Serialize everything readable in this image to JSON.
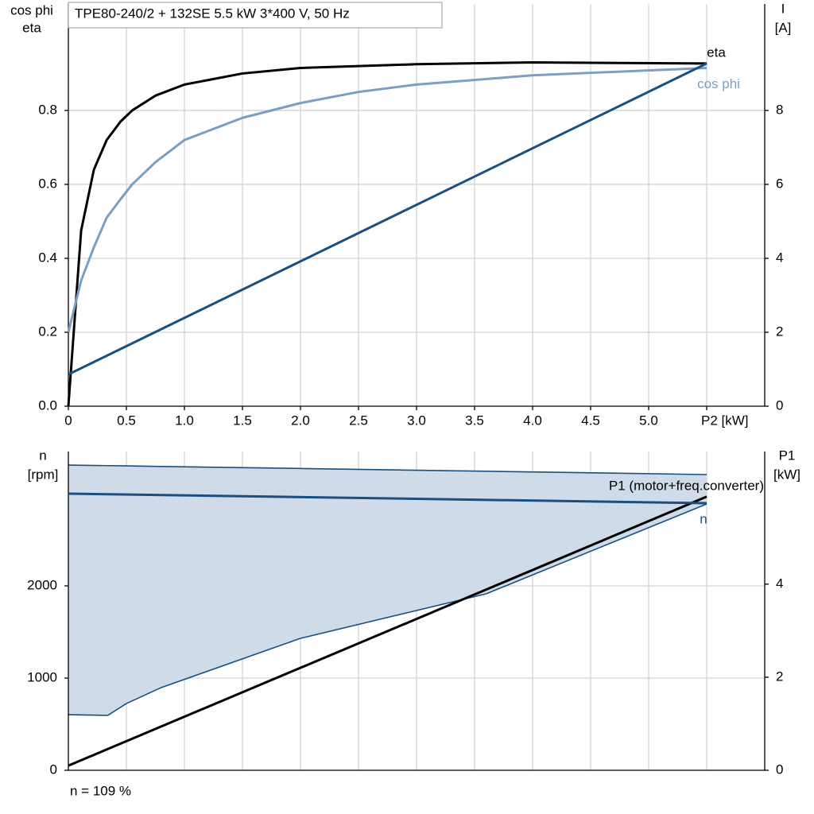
{
  "chart_data": [
    {
      "type": "line",
      "title": "TPE80-240/2 + 132SE   5.5 kW   3*400 V, 50 Hz",
      "ylabel": [
        "cos phi",
        "eta"
      ],
      "y2label": [
        "I",
        "[A]"
      ],
      "xlim": [
        0,
        6
      ],
      "xticks": [
        0,
        0.5,
        {
          "value": 1,
          "label": "1.0"
        },
        1.5,
        {
          "value": 2,
          "label": "2.0"
        },
        2.5,
        {
          "value": 3,
          "label": "3.0"
        },
        3.5,
        {
          "value": 4,
          "label": "4.0"
        },
        4.5,
        {
          "value": 5,
          "label": "5.0"
        },
        {
          "value": 5.5,
          "label": "P2 [kW]"
        }
      ],
      "ylim": [
        0,
        1.088
      ],
      "yticks": [
        {
          "value": 0,
          "label": "0.0"
        },
        0.2,
        0.4,
        0.6,
        0.8
      ],
      "y2lim": [
        0,
        10.88
      ],
      "y2ticks": [
        0,
        2,
        4,
        6,
        8
      ],
      "grid": true,
      "series": [
        {
          "name": "eta",
          "color": "#000000",
          "x": [
            0,
            0.11,
            0.22,
            0.33,
            0.45,
            0.55,
            0.75,
            1.0,
            1.5,
            2.0,
            3.0,
            4.0,
            5.5
          ],
          "values": [
            0,
            0.475,
            0.64,
            0.72,
            0.77,
            0.8,
            0.84,
            0.87,
            0.9,
            0.915,
            0.925,
            0.93,
            0.927
          ]
        },
        {
          "name": "cos phi",
          "color": "#7b9fc2",
          "x": [
            0,
            0.11,
            0.22,
            0.33,
            0.45,
            0.55,
            0.75,
            1.0,
            1.5,
            2.0,
            2.5,
            3.0,
            4.0,
            5.5
          ],
          "values": [
            0.2,
            0.34,
            0.43,
            0.51,
            0.56,
            0.6,
            0.66,
            0.72,
            0.78,
            0.82,
            0.85,
            0.87,
            0.895,
            0.915
          ]
        },
        {
          "color": "#1a4f80",
          "axis": "y2",
          "x": [
            0,
            5.5
          ],
          "values": [
            0.86,
            9.27
          ]
        }
      ]
    },
    {
      "type": "line",
      "ylabel": [
        "n",
        "[rpm]"
      ],
      "y2label": [
        "P1",
        "[kW]"
      ],
      "xlim": [
        0,
        6
      ],
      "xgrid": [
        0.5,
        1,
        1.5,
        2,
        2.5,
        3,
        3.5,
        4,
        4.5,
        5,
        5.5
      ],
      "ylim": [
        0,
        3457
      ],
      "yticks": [
        0,
        1000,
        2000
      ],
      "y2lim": [
        0,
        6.85
      ],
      "y2ticks": [
        0,
        2,
        4
      ],
      "grid": true,
      "band": {
        "color": "#cfdbe8",
        "line_color": "#1a4f80",
        "x": [
          0,
          0.34,
          0.5,
          0.8,
          2.0,
          3.6,
          5.5
        ],
        "upper": [
          3310,
          3304,
          3301,
          3295,
          3273,
          3243,
          3207
        ],
        "lower": [
          603,
          595,
          724,
          897,
          1431,
          1914,
          2888
        ]
      },
      "series": [
        {
          "name": "P1 (motor+freq.converter)",
          "color": "#000000",
          "axis": "y2",
          "x": [
            0,
            5.5
          ],
          "values": [
            0.1,
            5.88
          ]
        },
        {
          "name": "n",
          "color": "#1a4f80",
          "x": [
            0,
            5.5
          ],
          "values": [
            3000,
            2897
          ]
        }
      ],
      "annotation": "n = 109 %"
    }
  ]
}
